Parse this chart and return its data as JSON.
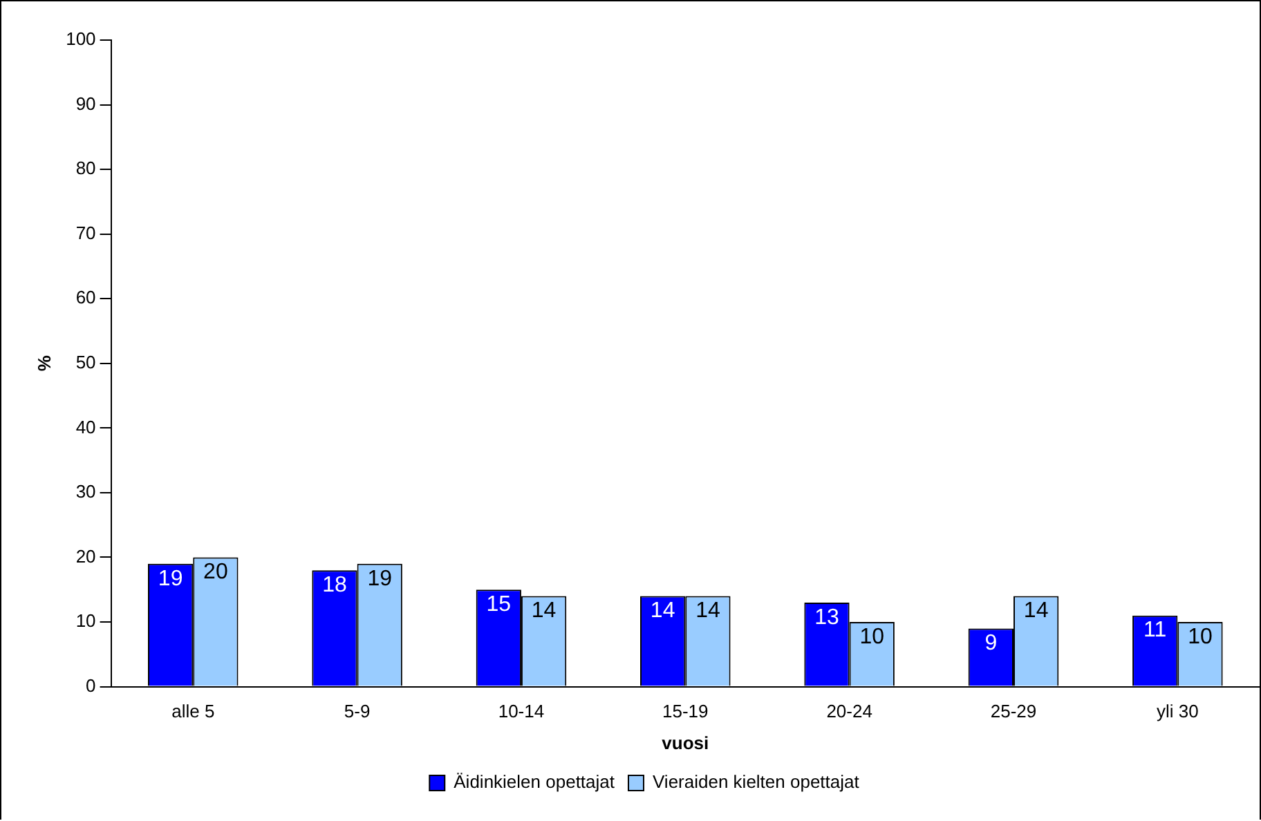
{
  "chart_data": {
    "type": "bar",
    "xlabel": "vuosi",
    "ylabel": "%",
    "categories": [
      "alle 5",
      "5-9",
      "10-14",
      "15-19",
      "20-24",
      "25-29",
      "yli 30"
    ],
    "series": [
      {
        "name": "Äidinkielen opettajat",
        "color": "#0000ff",
        "values": [
          19,
          18,
          15,
          14,
          13,
          9,
          11
        ]
      },
      {
        "name": "Vieraiden kielten opettajat",
        "color": "#99ccff",
        "values": [
          20,
          19,
          14,
          14,
          10,
          14,
          10
        ]
      }
    ],
    "ylim": [
      0,
      100
    ],
    "yticks": [
      0,
      10,
      20,
      30,
      40,
      50,
      60,
      70,
      80,
      90,
      100
    ],
    "grid": false,
    "legend": "bottom",
    "data_labels": true
  }
}
